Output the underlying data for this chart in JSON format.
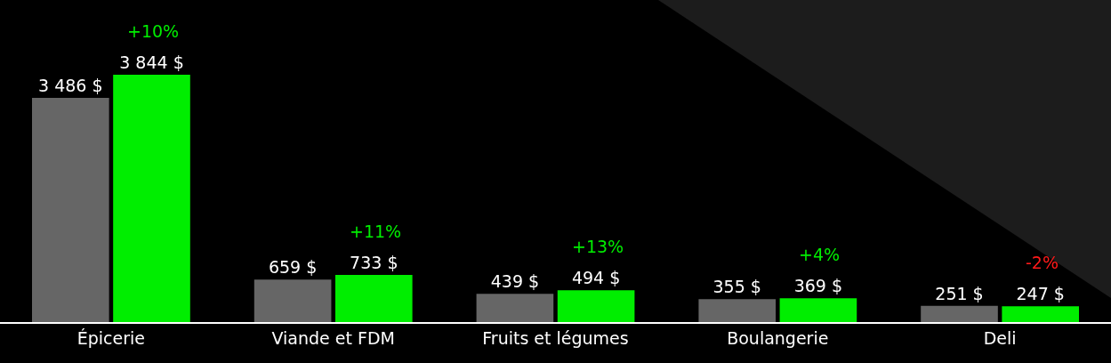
{
  "chart_data": {
    "type": "bar",
    "categories": [
      "Épicerie",
      "Viande et FDM",
      "Fruits et légumes",
      "Boulangerie",
      "Deli"
    ],
    "series": [
      {
        "color": "#666666",
        "values": [
          3486,
          659,
          439,
          355,
          251
        ],
        "value_labels": [
          "3 486 $",
          "659 $",
          "439 $",
          "355 $",
          "251 $"
        ]
      },
      {
        "color": "#00ee00",
        "values": [
          3844,
          733,
          494,
          369,
          247
        ],
        "value_labels": [
          "3 844 $",
          "733 $",
          "494 $",
          "369 $",
          "247 $"
        ]
      }
    ],
    "annotations": [
      {
        "text": "+10%",
        "x": "Épicerie",
        "y": 3844
      },
      {
        "text": "+11%",
        "x": "Viande et FDM",
        "y": 733
      },
      {
        "text": "+13%",
        "x": "Fruits et légumes",
        "y": 494
      },
      {
        "text": "+4%",
        "x": "Boulangerie",
        "y": 369
      },
      {
        "text": "-2%",
        "x": "Deli",
        "y": 247
      }
    ],
    "grid": false
  }
}
